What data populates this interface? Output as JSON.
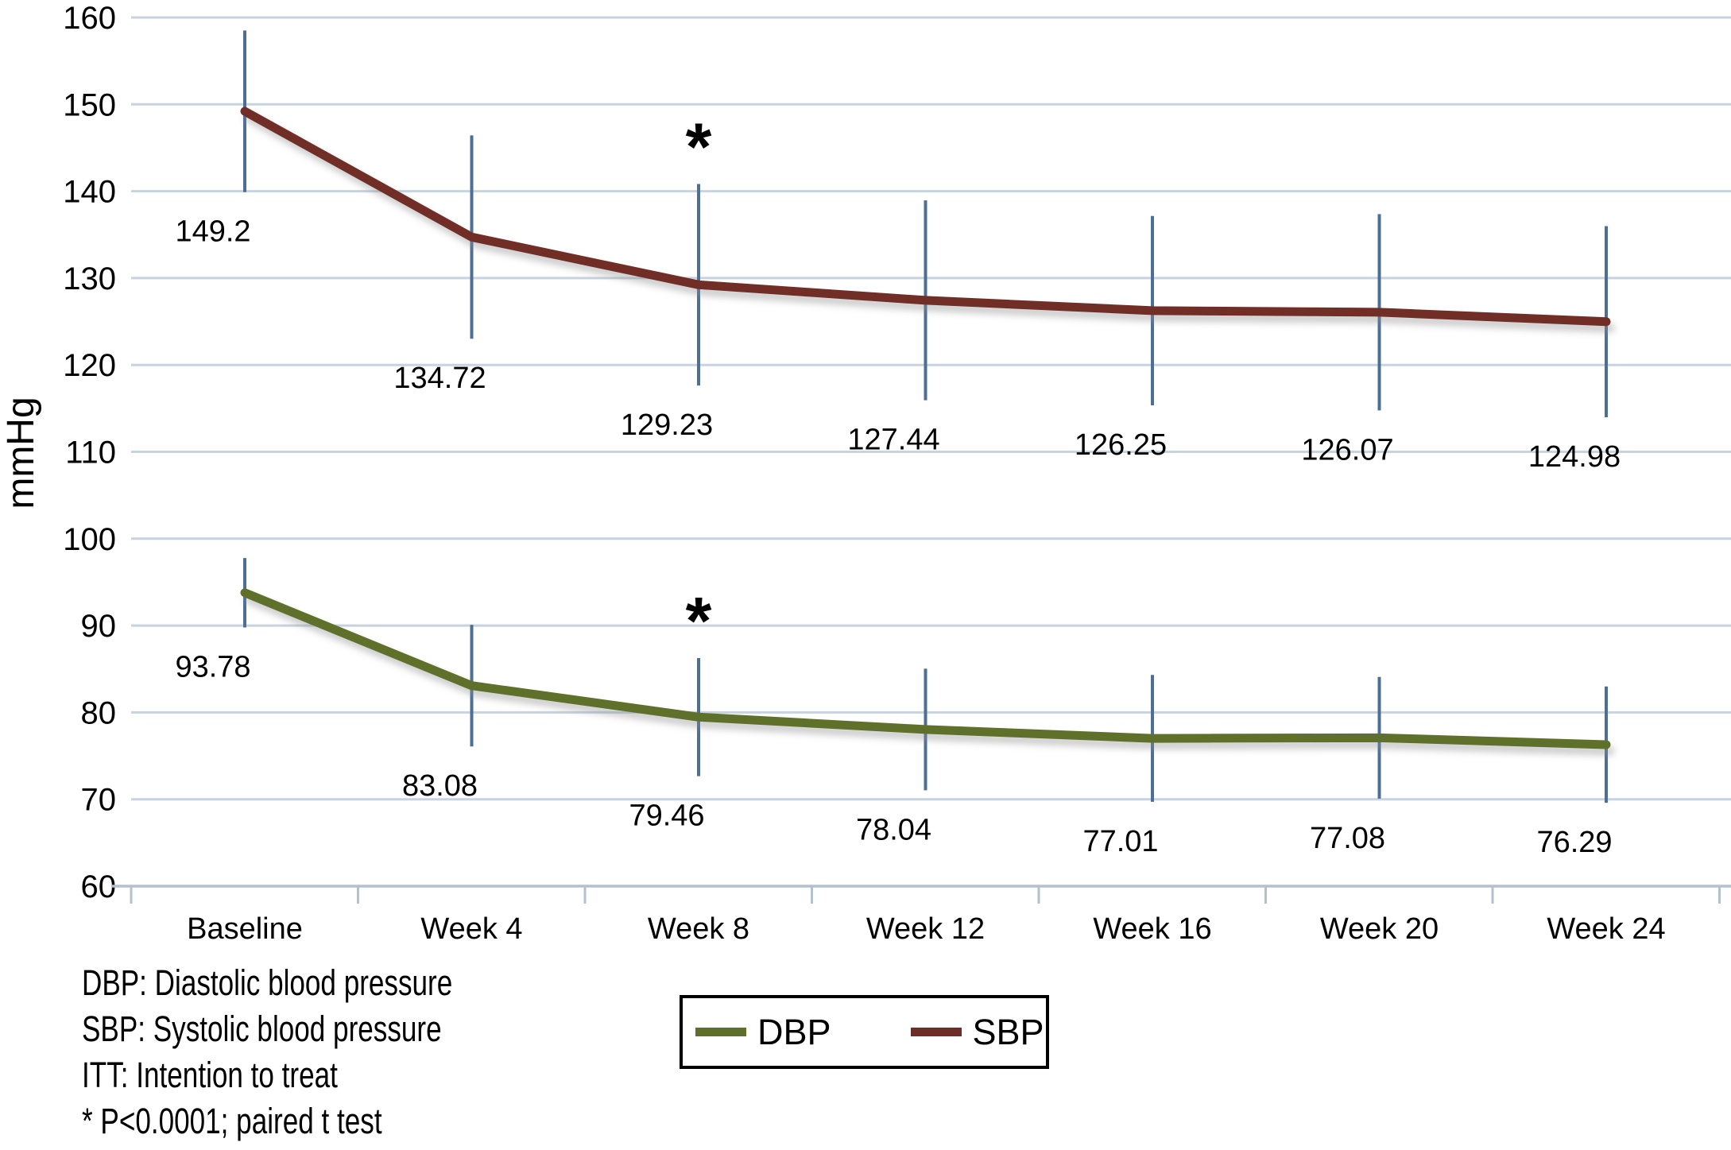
{
  "chart_data": {
    "type": "line",
    "title": "",
    "xlabel": "",
    "ylabel": "mmHg",
    "categories": [
      "Baseline",
      "Week 4",
      "Week 8",
      "Week 12",
      "Week 16",
      "Week 20",
      "Week 24"
    ],
    "y_axis": {
      "min": 60,
      "max": 160,
      "step": 10
    },
    "grid": "horizontal",
    "series": [
      {
        "name": "DBP",
        "color": "#5e6f2c",
        "values": [
          93.78,
          83.08,
          79.46,
          78.04,
          77.01,
          77.08,
          76.29
        ],
        "labels": [
          "93.78",
          "83.08",
          "79.46",
          "78.04",
          "77.01",
          "77.08",
          "76.29"
        ],
        "errors": [
          4.0,
          7.0,
          6.8,
          7.0,
          7.3,
          7.0,
          6.7
        ]
      },
      {
        "name": "SBP",
        "color": "#6f2d28",
        "values": [
          149.2,
          134.72,
          129.23,
          127.44,
          126.25,
          126.07,
          124.98
        ],
        "labels": [
          "149.2",
          "134.72",
          "129.23",
          "127.44",
          "126.25",
          "126.07",
          "124.98"
        ],
        "errors": [
          9.3,
          11.7,
          11.6,
          11.5,
          10.9,
          11.3,
          11.0
        ]
      }
    ],
    "error_bar_color": "#4d6f96",
    "gridline_color": "#c7d3df",
    "axis_color": "#b3c1cf",
    "significance": {
      "symbol": "*",
      "category": "Week 8",
      "series": [
        "DBP",
        "SBP"
      ]
    },
    "legend": {
      "position": "bottom",
      "entries": [
        "DBP",
        "SBP"
      ]
    }
  },
  "footnotes": [
    "DBP: Diastolic blood pressure",
    "SBP: Systolic blood pressure",
    "ITT: Intention to treat",
    "* P<0.0001; paired t test"
  ]
}
